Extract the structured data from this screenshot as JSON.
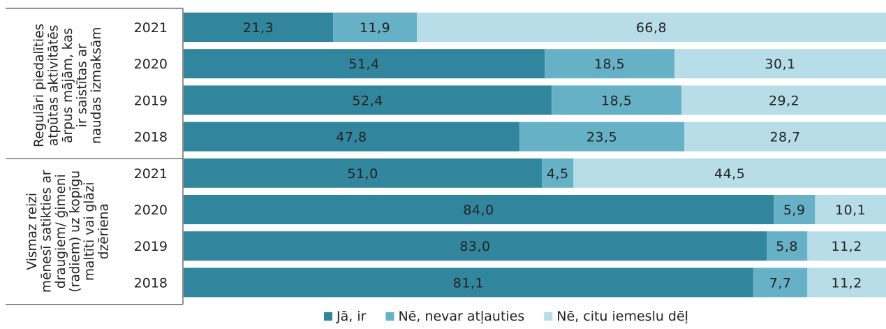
{
  "chart_data": {
    "type": "bar",
    "orientation": "horizontal",
    "stacked": true,
    "percent": true,
    "xlim": [
      0,
      100
    ],
    "grid": false,
    "legend_position": "bottom",
    "series": [
      {
        "name": "Jā, ir",
        "color": "#31859c"
      },
      {
        "name": "Nē, nevar atļauties",
        "color": "#67b1c7"
      },
      {
        "name": "Nē, citu iemeslu dēļ",
        "color": "#b7dde8"
      }
    ],
    "groups": [
      {
        "label_lines": [
          "Regulāri piedalīties",
          "atpūtas aktivitātēs",
          "ārpus mājām, kas",
          "ir saistītas ar",
          "naudas izmaksām"
        ],
        "rows": [
          {
            "year": "2021",
            "values": [
              21.3,
              11.9,
              66.8
            ],
            "labels": [
              "21,3",
              "11,9",
              "66,8"
            ]
          },
          {
            "year": "2020",
            "values": [
              51.4,
              18.5,
              30.1
            ],
            "labels": [
              "51,4",
              "18,5",
              "30,1"
            ]
          },
          {
            "year": "2019",
            "values": [
              52.4,
              18.5,
              29.2
            ],
            "labels": [
              "52,4",
              "18,5",
              "29,2"
            ]
          },
          {
            "year": "2018",
            "values": [
              47.8,
              23.5,
              28.7
            ],
            "labels": [
              "47,8",
              "23,5",
              "28,7"
            ]
          }
        ]
      },
      {
        "label_lines": [
          "Vismaz reizi",
          "mēnesī satikties ar",
          "draugiem/ ģimeni",
          "(radiem) uz kopīgu",
          "maltīti vai glāzi",
          "dzēriena"
        ],
        "rows": [
          {
            "year": "2021",
            "values": [
              51.0,
              4.5,
              44.5
            ],
            "labels": [
              "51,0",
              "4,5",
              "44,5"
            ]
          },
          {
            "year": "2020",
            "values": [
              84.0,
              5.9,
              10.1
            ],
            "labels": [
              "84,0",
              "5,9",
              "10,1"
            ]
          },
          {
            "year": "2019",
            "values": [
              83.0,
              5.8,
              11.2
            ],
            "labels": [
              "83,0",
              "5,8",
              "11,2"
            ]
          },
          {
            "year": "2018",
            "values": [
              81.1,
              7.7,
              11.2
            ],
            "labels": [
              "81,1",
              "7,7",
              "11,2"
            ]
          }
        ]
      }
    ]
  }
}
